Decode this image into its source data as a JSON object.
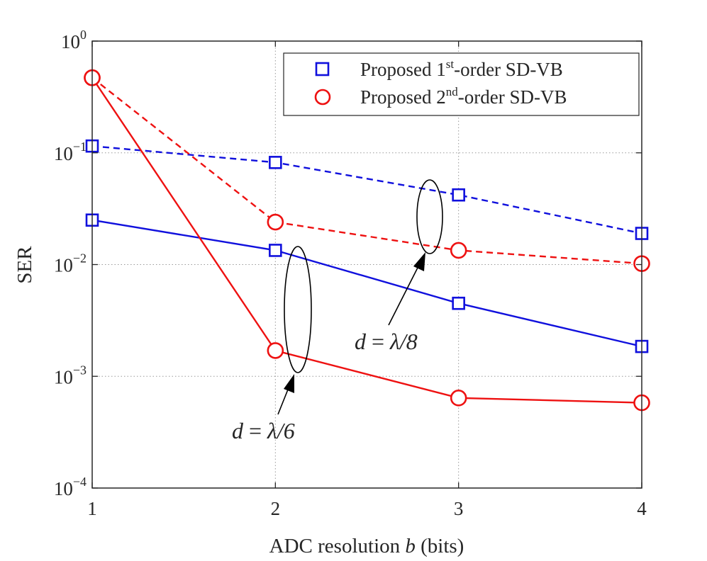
{
  "chart_data": {
    "type": "line",
    "title": "",
    "xlabel_prefix": "ADC resolution ",
    "xlabel_var": "b",
    "xlabel_suffix": " (bits)",
    "ylabel": "SER",
    "x_scale": "linear",
    "y_scale": "log",
    "xlim": [
      1,
      4
    ],
    "ylim": [
      0.0001,
      1
    ],
    "x_ticks": [
      1,
      2,
      3,
      4
    ],
    "x_tick_labels": [
      "1",
      "2",
      "3",
      "4"
    ],
    "y_ticks": [
      {
        "value": 0.0001,
        "base": "10",
        "exp": "−4"
      },
      {
        "value": 0.001,
        "base": "10",
        "exp": "−3"
      },
      {
        "value": 0.01,
        "base": "10",
        "exp": "−2"
      },
      {
        "value": 0.1,
        "base": "10",
        "exp": "−1"
      },
      {
        "value": 1,
        "base": "10",
        "exp": "0"
      }
    ],
    "grid": true,
    "legend_position": "top-right",
    "series": [
      {
        "id": "first-order-lambda8",
        "method": "1st",
        "spacing": "λ/8",
        "color": "#1010dd",
        "marker": "square",
        "dash": "dashed",
        "x": [
          1,
          2,
          3,
          4
        ],
        "values": [
          0.115,
          0.082,
          0.042,
          0.019
        ]
      },
      {
        "id": "second-order-lambda8",
        "method": "2nd",
        "spacing": "λ/8",
        "color": "#ee1111",
        "marker": "circle",
        "dash": "dashed",
        "x": [
          1,
          2,
          3,
          4
        ],
        "values": [
          0.47,
          0.024,
          0.0134,
          0.0102
        ]
      },
      {
        "id": "first-order-lambda6",
        "method": "1st",
        "spacing": "λ/6",
        "color": "#1010dd",
        "marker": "square",
        "dash": "solid",
        "x": [
          1,
          2,
          3,
          4
        ],
        "values": [
          0.025,
          0.0134,
          0.0045,
          0.00185
        ]
      },
      {
        "id": "second-order-lambda6",
        "method": "2nd",
        "spacing": "λ/6",
        "color": "#ee1111",
        "marker": "circle",
        "dash": "solid",
        "x": [
          1,
          2,
          3,
          4
        ],
        "values": [
          0.47,
          0.0017,
          0.00064,
          0.00058
        ]
      }
    ],
    "legend": [
      {
        "marker": "square",
        "color": "#1010dd",
        "pre": "Proposed 1",
        "sup": "st",
        "post": "-order SD-VB"
      },
      {
        "marker": "circle",
        "color": "#ee1111",
        "pre": "Proposed 2",
        "sup": "nd",
        "post": "-order SD-VB"
      }
    ],
    "annotations": [
      {
        "id": "lambda8",
        "var": "d",
        "eq": " = ",
        "value": "λ/8"
      },
      {
        "id": "lambda6",
        "var": "d",
        "eq": " = ",
        "value": "λ/6"
      }
    ]
  }
}
